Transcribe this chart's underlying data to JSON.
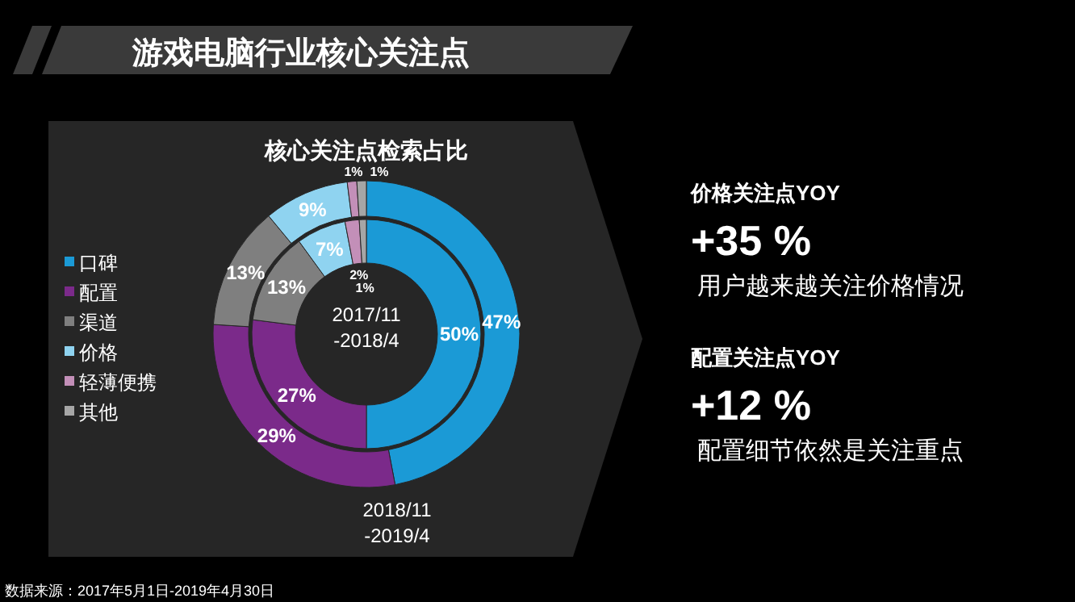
{
  "chart_data": {
    "type": "donut",
    "title": "游戏电脑行业核心关注点",
    "subtitle": "核心关注点检索占比",
    "categories": [
      "口碑",
      "配置",
      "渠道",
      "价格",
      "轻薄便携",
      "其他"
    ],
    "colors": [
      "#1b9ad6",
      "#7b2a8a",
      "#7f7f7f",
      "#8fd3f0",
      "#c38fb8",
      "#a6a6a6"
    ],
    "series": [
      {
        "name": "2017/11 -2018/4",
        "values": [
          50,
          27,
          13,
          7,
          2,
          1
        ],
        "value_labels": [
          "50%",
          "27%",
          "13%",
          "7%",
          "2%",
          "1%"
        ]
      },
      {
        "name": "2018/11 -2019/4",
        "values": [
          47,
          29,
          13,
          9,
          1,
          1
        ],
        "value_labels": [
          "47%",
          "29%",
          "13%",
          "9%",
          "1%",
          "1%"
        ]
      }
    ],
    "legend": "left",
    "annotations": [
      "价格关注点YOY",
      "+35 %",
      "用户越来越关注价格情况",
      "配置关注点YOY",
      "+12 %",
      "配置细节依然是关注重点",
      "数据来源：2017年5月1日-2019年4月30日"
    ]
  }
}
